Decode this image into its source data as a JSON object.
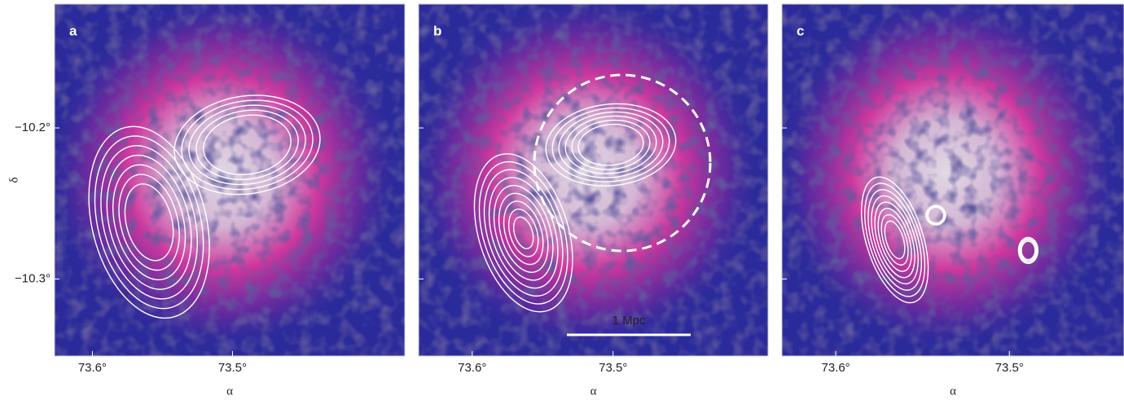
{
  "chart_data": [
    {
      "type": "image",
      "label": "a",
      "xlabel": "α",
      "ylabel": "δ",
      "xlim": [
        73.627,
        73.377
      ],
      "ylim": [
        -10.351,
        -10.118
      ],
      "xticks": [
        {
          "value": 73.6,
          "label": "73.6°"
        },
        {
          "value": 73.5,
          "label": "73.5°"
        }
      ],
      "yticks": [
        {
          "value": -10.3,
          "label": "−10.3°"
        },
        {
          "value": -10.2,
          "label": "−10.2°"
        }
      ]
    },
    {
      "type": "image",
      "label": "b",
      "xlabel": "α",
      "annotation": "1 Mpc",
      "xlim": [
        73.638,
        73.39
      ],
      "ylim": [
        -10.351,
        -10.118
      ],
      "xticks": [
        {
          "value": 73.6,
          "label": "73.6°"
        },
        {
          "value": 73.5,
          "label": "73.5°"
        }
      ],
      "yticks": [
        -10.3,
        -10.2
      ]
    },
    {
      "type": "image",
      "label": "c",
      "xlabel": "α",
      "xlim": [
        73.631,
        73.434
      ],
      "ylim": [
        -10.351,
        -10.118
      ],
      "xticks": [
        {
          "value": 73.6,
          "label": "73.6°"
        },
        {
          "value": 73.5,
          "label": "73.5°"
        }
      ],
      "yticks": [
        -10.3,
        -10.2
      ]
    }
  ]
}
